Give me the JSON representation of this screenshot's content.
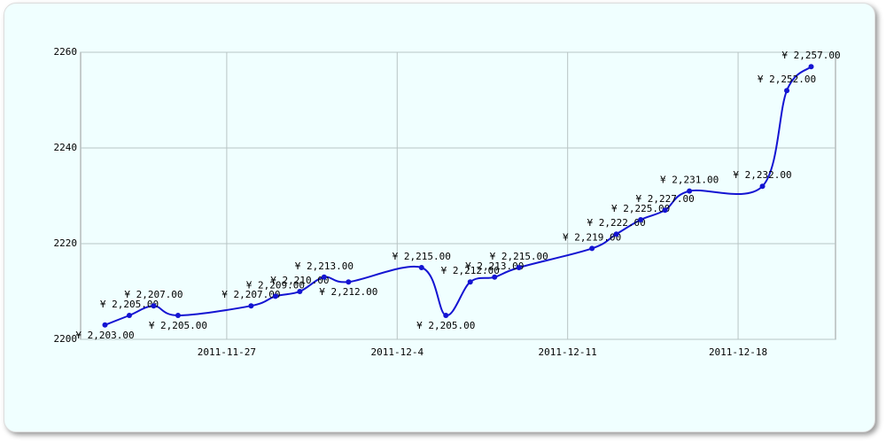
{
  "chart_data": {
    "type": "line",
    "x": [
      "2011-11-22",
      "2011-11-23",
      "2011-11-24",
      "2011-11-25",
      "2011-11-28",
      "2011-11-29",
      "2011-11-30",
      "2011-12-1",
      "2011-12-2",
      "2011-12-5",
      "2011-12-6",
      "2011-12-7",
      "2011-12-8",
      "2011-12-9",
      "2011-12-12",
      "2011-12-13",
      "2011-12-14",
      "2011-12-15",
      "2011-12-16",
      "2011-12-19",
      "2011-12-20",
      "2011-12-21"
    ],
    "series": [
      {
        "color": "#1414d2",
        "values": [
          2203,
          2205,
          2207,
          2205,
          2207,
          2209,
          2210,
          2213,
          2212,
          2215,
          2205,
          2212,
          2213,
          2215,
          2219,
          2222,
          2225,
          2227,
          2231,
          2232,
          2252,
          2257
        ],
        "value_labels": [
          "¥ 2,203.00",
          "¥ 2,205.00",
          "¥ 2,207.00",
          "¥ 2,205.00",
          "¥ 2,207.00",
          "¥ 2,209.00",
          "¥ 2,210.00",
          "¥ 2,213.00",
          "¥ 2,212.00",
          "¥ 2,215.00",
          "¥ 2,205.00",
          "¥ 2,212.00",
          "¥ 2,213.00",
          "¥ 2,215.00",
          "¥ 2,219.00",
          "¥ 2,222.00",
          "¥ 2,225.00",
          "¥ 2,227.00",
          "¥ 2,231.00",
          "¥ 2,232.00",
          "¥ 2,252.00",
          "¥ 2,257.00"
        ]
      }
    ],
    "xlim": [
      "2011-11-21",
      "2011-12-22"
    ],
    "xticks": [
      "2011-11-27",
      "2011-12-4",
      "2011-12-11",
      "2011-12-18"
    ],
    "ylim": [
      2200,
      2260
    ],
    "yticks": [
      2200,
      2220,
      2240,
      2260
    ],
    "grid": true
  }
}
